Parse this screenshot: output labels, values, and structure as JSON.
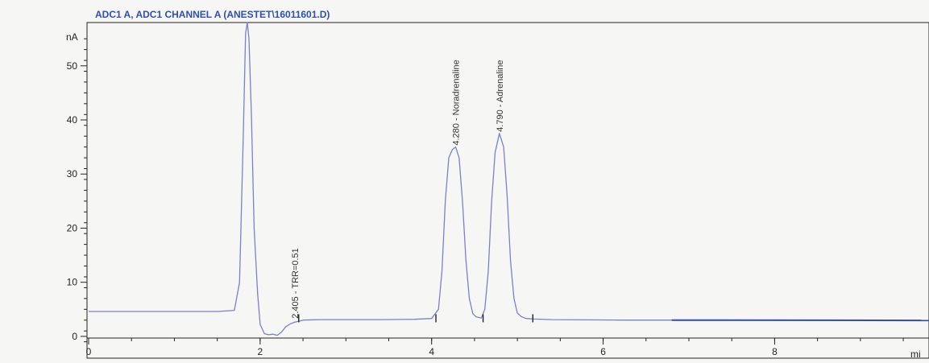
{
  "chart_data": {
    "type": "line",
    "title": "ADC1 A, ADC1 CHANNEL A (ANESTET\\16011601.D)",
    "ylabel": "nA",
    "xlabel": "mi",
    "xlim": [
      0,
      9.8
    ],
    "ylim": [
      -1.5,
      58
    ],
    "x_ticks": [
      0,
      2,
      4,
      6,
      8
    ],
    "y_ticks": [
      0,
      10,
      20,
      30,
      40,
      50
    ],
    "grid": false,
    "series": [
      {
        "color": "#7b7fd0",
        "x": [
          0,
          0.4,
          0.8,
          1.2,
          1.5,
          1.7,
          1.76,
          1.8,
          1.83,
          1.85,
          1.87,
          1.9,
          1.93,
          1.97,
          2.0,
          2.05,
          2.1,
          2.15,
          2.2,
          2.25,
          2.3,
          2.35,
          2.4,
          2.45,
          2.5,
          2.7,
          3.0,
          3.4,
          3.8,
          4.0,
          4.08,
          4.12,
          4.16,
          4.2,
          4.24,
          4.28,
          4.32,
          4.36,
          4.4,
          4.44,
          4.48,
          4.52,
          4.58,
          4.62,
          4.66,
          4.7,
          4.74,
          4.79,
          4.84,
          4.88,
          4.92,
          4.96,
          5.0,
          5.05,
          5.1,
          5.2,
          5.4,
          5.8,
          6.2,
          6.5,
          6.8
        ],
        "y": [
          4.6,
          4.6,
          4.6,
          4.6,
          4.6,
          4.8,
          10,
          35,
          56,
          58,
          55,
          40,
          20,
          8,
          2.2,
          0.5,
          0.3,
          0.4,
          0.2,
          0.8,
          1.8,
          2.3,
          2.6,
          2.8,
          3.0,
          3.1,
          3.1,
          3.1,
          3.15,
          3.3,
          5,
          12,
          25,
          33,
          34.5,
          35,
          33,
          25,
          14,
          7,
          4.2,
          3.6,
          3.4,
          5,
          12,
          25,
          34,
          37.5,
          35,
          26,
          14,
          7,
          4.3,
          3.6,
          3.3,
          3.2,
          3.1,
          3.05,
          3.0,
          3.0,
          3.0
        ]
      },
      {
        "color": "#2a4fb0",
        "x": [
          6.8,
          9.8
        ],
        "y": [
          3.0,
          2.95
        ]
      }
    ],
    "annotations": [
      {
        "text": "2.405 -  TRR=0.51",
        "x": 2.405,
        "y_base": 3
      },
      {
        "text": "4.280 -  Noradrenaline",
        "x": 4.28,
        "y_base": 35
      },
      {
        "text": "4.790 -  Adrenaline",
        "x": 4.79,
        "y_base": 37.5
      }
    ],
    "baseline_markers": [
      2.45,
      4.05,
      4.6,
      5.18
    ]
  }
}
